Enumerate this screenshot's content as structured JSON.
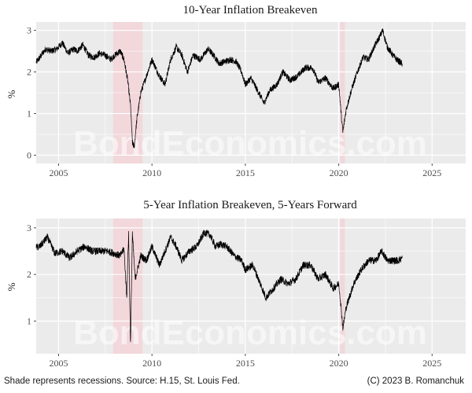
{
  "chart_data": [
    {
      "type": "line",
      "title": "10-Year Inflation Breakeven",
      "xlabel": "",
      "ylabel": "%",
      "xlim": [
        2003.8,
        2026.8
      ],
      "ylim": [
        -0.2,
        3.2
      ],
      "x_ticks": [
        2005,
        2010,
        2015,
        2020,
        2025
      ],
      "y_ticks": [
        0,
        1,
        2,
        3
      ],
      "recessions": [
        [
          2007.92,
          2009.5
        ],
        [
          2020.08,
          2020.33
        ]
      ],
      "recession_color": "#f3d3d8",
      "panel_color": "#ebebeb",
      "line_color": "#000000",
      "grid": true,
      "series": [
        {
          "name": "",
          "points": [
            [
              2003.0,
              1.85
            ],
            [
              2003.5,
              2.05
            ],
            [
              2004.0,
              2.35
            ],
            [
              2004.3,
              2.55
            ],
            [
              2004.6,
              2.5
            ],
            [
              2004.9,
              2.55
            ],
            [
              2005.2,
              2.7
            ],
            [
              2005.5,
              2.45
            ],
            [
              2005.8,
              2.55
            ],
            [
              2006.0,
              2.5
            ],
            [
              2006.3,
              2.65
            ],
            [
              2006.6,
              2.4
            ],
            [
              2006.9,
              2.35
            ],
            [
              2007.2,
              2.45
            ],
            [
              2007.5,
              2.4
            ],
            [
              2007.8,
              2.3
            ],
            [
              2008.0,
              2.4
            ],
            [
              2008.3,
              2.5
            ],
            [
              2008.5,
              2.3
            ],
            [
              2008.7,
              1.8
            ],
            [
              2008.85,
              1.2
            ],
            [
              2008.95,
              0.3
            ],
            [
              2009.05,
              0.2
            ],
            [
              2009.2,
              0.9
            ],
            [
              2009.4,
              1.5
            ],
            [
              2009.7,
              1.9
            ],
            [
              2010.0,
              2.3
            ],
            [
              2010.4,
              1.9
            ],
            [
              2010.7,
              1.7
            ],
            [
              2011.0,
              2.3
            ],
            [
              2011.3,
              2.6
            ],
            [
              2011.6,
              2.4
            ],
            [
              2011.9,
              2.0
            ],
            [
              2012.2,
              2.4
            ],
            [
              2012.6,
              2.3
            ],
            [
              2013.0,
              2.55
            ],
            [
              2013.3,
              2.4
            ],
            [
              2013.6,
              2.2
            ],
            [
              2013.9,
              2.25
            ],
            [
              2014.2,
              2.3
            ],
            [
              2014.5,
              2.25
            ],
            [
              2014.8,
              2.0
            ],
            [
              2015.0,
              1.7
            ],
            [
              2015.3,
              1.85
            ],
            [
              2015.6,
              1.6
            ],
            [
              2016.0,
              1.25
            ],
            [
              2016.3,
              1.55
            ],
            [
              2016.7,
              1.7
            ],
            [
              2017.0,
              2.0
            ],
            [
              2017.4,
              1.8
            ],
            [
              2017.8,
              1.9
            ],
            [
              2018.2,
              2.1
            ],
            [
              2018.6,
              2.1
            ],
            [
              2018.9,
              1.75
            ],
            [
              2019.3,
              1.85
            ],
            [
              2019.7,
              1.6
            ],
            [
              2020.0,
              1.7
            ],
            [
              2020.15,
              0.9
            ],
            [
              2020.22,
              0.55
            ],
            [
              2020.4,
              1.1
            ],
            [
              2020.7,
              1.6
            ],
            [
              2021.0,
              2.0
            ],
            [
              2021.3,
              2.35
            ],
            [
              2021.6,
              2.3
            ],
            [
              2021.9,
              2.6
            ],
            [
              2022.2,
              2.85
            ],
            [
              2022.35,
              3.0
            ],
            [
              2022.6,
              2.6
            ],
            [
              2022.9,
              2.4
            ],
            [
              2023.1,
              2.3
            ],
            [
              2023.4,
              2.2
            ]
          ]
        }
      ]
    },
    {
      "type": "line",
      "title": "5-Year Inflation Breakeven, 5-Years Forward",
      "xlabel": "",
      "ylabel": "%",
      "xlim": [
        2003.8,
        2026.8
      ],
      "ylim": [
        0.3,
        3.2
      ],
      "x_ticks": [
        2005,
        2010,
        2015,
        2020,
        2025
      ],
      "y_ticks": [
        1,
        2,
        3
      ],
      "recessions": [
        [
          2007.92,
          2009.5
        ],
        [
          2020.08,
          2020.33
        ]
      ],
      "recession_color": "#f3d3d8",
      "panel_color": "#ebebeb",
      "line_color": "#000000",
      "grid": true,
      "series": [
        {
          "name": "",
          "points": [
            [
              2003.0,
              2.5
            ],
            [
              2003.5,
              2.55
            ],
            [
              2004.0,
              2.6
            ],
            [
              2004.4,
              2.8
            ],
            [
              2004.8,
              2.45
            ],
            [
              2005.2,
              2.5
            ],
            [
              2005.6,
              2.35
            ],
            [
              2006.0,
              2.5
            ],
            [
              2006.4,
              2.6
            ],
            [
              2006.8,
              2.5
            ],
            [
              2007.2,
              2.5
            ],
            [
              2007.6,
              2.5
            ],
            [
              2008.0,
              2.45
            ],
            [
              2008.3,
              2.4
            ],
            [
              2008.5,
              2.55
            ],
            [
              2008.65,
              1.5
            ],
            [
              2008.75,
              2.9
            ],
            [
              2008.85,
              0.5
            ],
            [
              2008.95,
              2.9
            ],
            [
              2009.1,
              1.9
            ],
            [
              2009.4,
              2.4
            ],
            [
              2009.7,
              2.3
            ],
            [
              2010.0,
              2.6
            ],
            [
              2010.4,
              2.2
            ],
            [
              2010.7,
              2.5
            ],
            [
              2011.0,
              2.8
            ],
            [
              2011.3,
              2.6
            ],
            [
              2011.6,
              2.3
            ],
            [
              2012.0,
              2.5
            ],
            [
              2012.4,
              2.6
            ],
            [
              2012.8,
              2.9
            ],
            [
              2013.1,
              2.85
            ],
            [
              2013.4,
              2.6
            ],
            [
              2013.7,
              2.65
            ],
            [
              2014.0,
              2.6
            ],
            [
              2014.4,
              2.4
            ],
            [
              2014.8,
              2.3
            ],
            [
              2015.0,
              2.1
            ],
            [
              2015.4,
              2.2
            ],
            [
              2015.8,
              1.8
            ],
            [
              2016.1,
              1.5
            ],
            [
              2016.5,
              1.7
            ],
            [
              2016.9,
              1.9
            ],
            [
              2017.3,
              1.8
            ],
            [
              2017.7,
              1.9
            ],
            [
              2018.1,
              2.2
            ],
            [
              2018.5,
              2.2
            ],
            [
              2018.9,
              1.9
            ],
            [
              2019.3,
              2.0
            ],
            [
              2019.7,
              1.7
            ],
            [
              2020.0,
              1.8
            ],
            [
              2020.15,
              1.2
            ],
            [
              2020.22,
              0.85
            ],
            [
              2020.4,
              1.3
            ],
            [
              2020.8,
              1.8
            ],
            [
              2021.2,
              2.1
            ],
            [
              2021.6,
              2.3
            ],
            [
              2022.0,
              2.3
            ],
            [
              2022.3,
              2.5
            ],
            [
              2022.6,
              2.3
            ],
            [
              2022.9,
              2.3
            ],
            [
              2023.2,
              2.3
            ],
            [
              2023.4,
              2.35
            ]
          ]
        }
      ]
    }
  ],
  "watermark": "BondEconomics.com",
  "caption": {
    "left": "Shade represents recessions. Source: H.15, St. Louis Fed.",
    "right": "(C) 2023 B. Romanchuk"
  }
}
